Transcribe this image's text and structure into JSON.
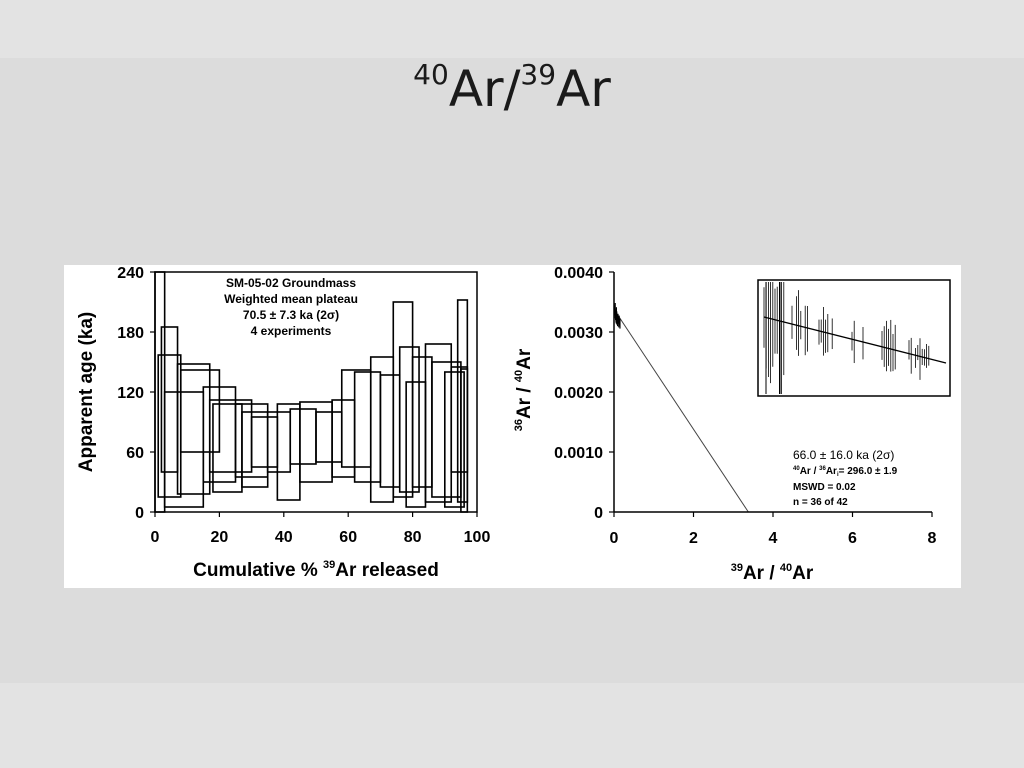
{
  "slide": {
    "title_main": "Ar/",
    "title_sup1": "40",
    "title_sup2": "39",
    "title_end": "Ar"
  },
  "chart_data": [
    {
      "type": "bar",
      "subtype": "age-spectrum",
      "ylabel": "Apparent age (ka)",
      "xlabel_prefix": "Cumulative % ",
      "xlabel_sup": "39",
      "xlabel_suffix": "Ar released",
      "xlim": [
        0,
        100
      ],
      "ylim": [
        0,
        240
      ],
      "xticks": [
        "0",
        "20",
        "40",
        "60",
        "80",
        "100"
      ],
      "yticks": [
        "0",
        "60",
        "120",
        "180",
        "240"
      ],
      "annotation_lines": [
        "SM-05-02 Groundmass",
        "Weighted mean plateau",
        "70.5 ± 7.3 ka (2σ)",
        "4 experiments"
      ],
      "steps": [
        {
          "x0": 0,
          "x1": 3,
          "y0": 0,
          "y1": 240
        },
        {
          "x0": 1,
          "x1": 8,
          "y0": 15,
          "y1": 157
        },
        {
          "x0": 2,
          "x1": 7,
          "y0": 40,
          "y1": 185
        },
        {
          "x0": 3,
          "x1": 15,
          "y0": 5,
          "y1": 120
        },
        {
          "x0": 7,
          "x1": 17,
          "y0": 18,
          "y1": 148
        },
        {
          "x0": 8,
          "x1": 20,
          "y0": 60,
          "y1": 142
        },
        {
          "x0": 15,
          "x1": 25,
          "y0": 30,
          "y1": 125
        },
        {
          "x0": 17,
          "x1": 30,
          "y0": 40,
          "y1": 112
        },
        {
          "x0": 18,
          "x1": 27,
          "y0": 20,
          "y1": 108
        },
        {
          "x0": 25,
          "x1": 35,
          "y0": 35,
          "y1": 108
        },
        {
          "x0": 27,
          "x1": 35,
          "y0": 25,
          "y1": 100
        },
        {
          "x0": 30,
          "x1": 38,
          "y0": 45,
          "y1": 95
        },
        {
          "x0": 35,
          "x1": 42,
          "y0": 40,
          "y1": 100
        },
        {
          "x0": 38,
          "x1": 45,
          "y0": 12,
          "y1": 108
        },
        {
          "x0": 42,
          "x1": 50,
          "y0": 48,
          "y1": 103
        },
        {
          "x0": 45,
          "x1": 55,
          "y0": 30,
          "y1": 110
        },
        {
          "x0": 50,
          "x1": 58,
          "y0": 50,
          "y1": 100
        },
        {
          "x0": 55,
          "x1": 62,
          "y0": 35,
          "y1": 112
        },
        {
          "x0": 58,
          "x1": 67,
          "y0": 45,
          "y1": 142
        },
        {
          "x0": 62,
          "x1": 70,
          "y0": 30,
          "y1": 140
        },
        {
          "x0": 67,
          "x1": 74,
          "y0": 10,
          "y1": 155
        },
        {
          "x0": 70,
          "x1": 76,
          "y0": 25,
          "y1": 137
        },
        {
          "x0": 74,
          "x1": 80,
          "y0": 15,
          "y1": 210
        },
        {
          "x0": 76,
          "x1": 82,
          "y0": 20,
          "y1": 165
        },
        {
          "x0": 78,
          "x1": 84,
          "y0": 5,
          "y1": 130
        },
        {
          "x0": 80,
          "x1": 86,
          "y0": 25,
          "y1": 155
        },
        {
          "x0": 84,
          "x1": 92,
          "y0": 10,
          "y1": 168
        },
        {
          "x0": 86,
          "x1": 95,
          "y0": 15,
          "y1": 150
        },
        {
          "x0": 90,
          "x1": 96,
          "y0": 5,
          "y1": 140
        },
        {
          "x0": 92,
          "x1": 97,
          "y0": 40,
          "y1": 145
        },
        {
          "x0": 94,
          "x1": 97,
          "y0": 10,
          "y1": 212
        },
        {
          "x0": 95,
          "x1": 97,
          "y0": 0,
          "y1": 143
        }
      ]
    },
    {
      "type": "scatter",
      "subtype": "inverse-isochron",
      "ylabel_sup1": "36",
      "ylabel_mid": "Ar / ",
      "ylabel_sup2": "40",
      "ylabel_end": "Ar",
      "xlabel_sup1": "39",
      "xlabel_mid": "Ar / ",
      "xlabel_sup2": "40",
      "xlabel_end": "Ar",
      "xlim": [
        0,
        8
      ],
      "ylim": [
        0,
        0.004
      ],
      "xticks": [
        "0",
        "2",
        "4",
        "6",
        "8"
      ],
      "yticks": [
        "0",
        "0.0010",
        "0.0020",
        "0.0030",
        "0.0040"
      ],
      "isochron": {
        "x0": 0,
        "y0": 0.003378,
        "x1": 3.38,
        "y1": 0
      },
      "stats": {
        "age": "66.0 ± 16.0 ka (2σ)",
        "intercept_a": "40",
        "intercept_b": "Ar / ",
        "intercept_c": "36",
        "intercept_d": "Ar",
        "intercept_e": "i",
        "intercept_f": "= 296.0 ± 1.9",
        "mswd": "MSWD = 0.02",
        "n": "n = 36 of 42"
      },
      "points": [
        {
          "x": 0.02,
          "y": 0.00336
        },
        {
          "x": 0.03,
          "y": 0.00331
        },
        {
          "x": 0.04,
          "y": 0.00328
        },
        {
          "x": 0.05,
          "y": 0.00324
        },
        {
          "x": 0.06,
          "y": 0.00322
        },
        {
          "x": 0.07,
          "y": 0.00326
        },
        {
          "x": 0.08,
          "y": 0.0032
        },
        {
          "x": 0.09,
          "y": 0.00318
        },
        {
          "x": 0.1,
          "y": 0.00322
        },
        {
          "x": 0.12,
          "y": 0.00316
        },
        {
          "x": 0.13,
          "y": 0.00319
        },
        {
          "x": 0.15,
          "y": 0.00314
        },
        {
          "x": 0.03,
          "y": 0.0034
        },
        {
          "x": 0.06,
          "y": 0.00333
        }
      ]
    }
  ]
}
